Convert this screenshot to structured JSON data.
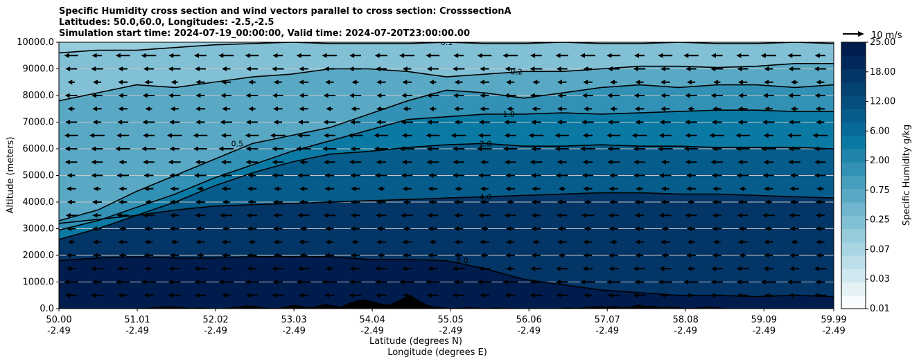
{
  "chart_data": {
    "type": "contour",
    "title_lines": [
      "Specific Humidity cross section and wind vectors parallel to cross section: CrosssectionA",
      "Latitudes: 50.0,60.0, Longitudes: -2.5,-2.5",
      "Simulation start time: 2024-07-19_00:00:00, Valid time: 2024-07-20T23:00:00.00"
    ],
    "ylabel": "Altitude (meters)",
    "xlabel_lines": [
      "Latitude (degrees N)",
      "Longitude (degrees E)"
    ],
    "ylim": [
      0,
      10000
    ],
    "xlim": [
      50.0,
      59.99
    ],
    "y_ticks": [
      "0.0",
      "1000.0",
      "2000.0",
      "3000.0",
      "4000.0",
      "5000.0",
      "6000.0",
      "7000.0",
      "8000.0",
      "9000.0",
      "10000.0"
    ],
    "x_ticks": [
      {
        "lat": "50.00",
        "lon": "-2.49"
      },
      {
        "lat": "51.01",
        "lon": "-2.49"
      },
      {
        "lat": "52.02",
        "lon": "-2.49"
      },
      {
        "lat": "53.03",
        "lon": "-2.49"
      },
      {
        "lat": "54.04",
        "lon": "-2.49"
      },
      {
        "lat": "55.05",
        "lon": "-2.49"
      },
      {
        "lat": "56.06",
        "lon": "-2.49"
      },
      {
        "lat": "57.07",
        "lon": "-2.49"
      },
      {
        "lat": "58.08",
        "lon": "-2.49"
      },
      {
        "lat": "59.09",
        "lon": "-2.49"
      },
      {
        "lat": "59.99",
        "lon": "-2.49"
      }
    ],
    "colorbar": {
      "label": "Specific Humidity g/kg",
      "tick_labels": [
        "0.01",
        "0.03",
        "0.07",
        "0.25",
        "0.75",
        "2.00",
        "6.00",
        "12.00",
        "18.00",
        "25.00"
      ],
      "colors": [
        "#f7fbfd",
        "#e4f1f5",
        "#d0e8ef",
        "#bddfea",
        "#a9d5e3",
        "#96cbdc",
        "#82c0d5",
        "#6eb5cd",
        "#5aa9c4",
        "#469dbc",
        "#3291b4",
        "#1f85ac",
        "#0a7aa4",
        "#066b98",
        "#065d8b",
        "#054f7e",
        "#044272",
        "#033566",
        "#02285a",
        "#001c4d"
      ]
    },
    "contour_lines": [
      {
        "label": "8.0",
        "label_lat": 55.2,
        "alt": [
          1800,
          1900,
          1950,
          1900,
          1900,
          1950,
          1950,
          1950,
          1850,
          1850,
          1800,
          1500,
          1100,
          900,
          700,
          600,
          500,
          500,
          450,
          500,
          450
        ]
      },
      {
        "label": "4.0",
        "label_lat": 55.5,
        "alt": [
          3200,
          3350,
          3500,
          3700,
          3850,
          3900,
          3950,
          4000,
          4050,
          4100,
          4150,
          4200,
          4250,
          4300,
          4350,
          4350,
          4300,
          4300,
          4250,
          4200,
          4150
        ]
      },
      {
        "label": "2.0",
        "label_lat": 55.5,
        "alt": [
          2600,
          3000,
          3500,
          4000,
          4600,
          5100,
          5500,
          5800,
          5900,
          6050,
          6150,
          6200,
          6100,
          6100,
          6150,
          6100,
          6100,
          6050,
          6050,
          6050,
          6000
        ]
      },
      {
        "label": "1.0",
        "label_lat": 55.8,
        "alt": [
          2950,
          3300,
          3800,
          4300,
          4900,
          5400,
          5900,
          6300,
          6700,
          7100,
          7200,
          7300,
          7300,
          7350,
          7300,
          7350,
          7400,
          7450,
          7450,
          7400,
          7400
        ]
      },
      {
        "label": "0.5",
        "label_lat": 52.3,
        "alt": [
          3300,
          3700,
          4400,
          5000,
          5600,
          6200,
          6500,
          6800,
          7300,
          7800,
          8200,
          8100,
          7900,
          8100,
          8300,
          8400,
          8300,
          8400,
          8400,
          8300,
          8400
        ]
      },
      {
        "label": "0.2",
        "label_lat": 55.9,
        "alt": [
          7800,
          8100,
          8400,
          8300,
          8500,
          8700,
          8800,
          9000,
          9000,
          8900,
          8700,
          8800,
          8900,
          8900,
          9000,
          9100,
          9100,
          9050,
          9100,
          9200,
          9200
        ]
      },
      {
        "label": "0.1",
        "label_lat": 55.0,
        "alt": [
          9600,
          9700,
          9700,
          9800,
          9900,
          9950,
          10000,
          9950,
          9950,
          9950,
          10000,
          9950,
          9950,
          10000,
          9950,
          9950,
          10000,
          9950,
          9950,
          10000,
          9950
        ]
      }
    ],
    "terrain_max_alt": 500,
    "wind_reference": {
      "label": "10 m/s"
    },
    "wind_rows_alt": [
      500,
      1000,
      1500,
      2000,
      2500,
      3000,
      3500,
      4000,
      4500,
      5000,
      5500,
      6000,
      6500,
      7000,
      7500,
      8000,
      8500,
      9000,
      9500
    ],
    "wind_speed_rows": [
      4,
      5,
      4,
      3,
      3,
      3,
      4,
      3,
      3,
      4,
      4,
      5,
      5,
      4,
      3,
      4,
      3,
      4,
      5
    ]
  }
}
